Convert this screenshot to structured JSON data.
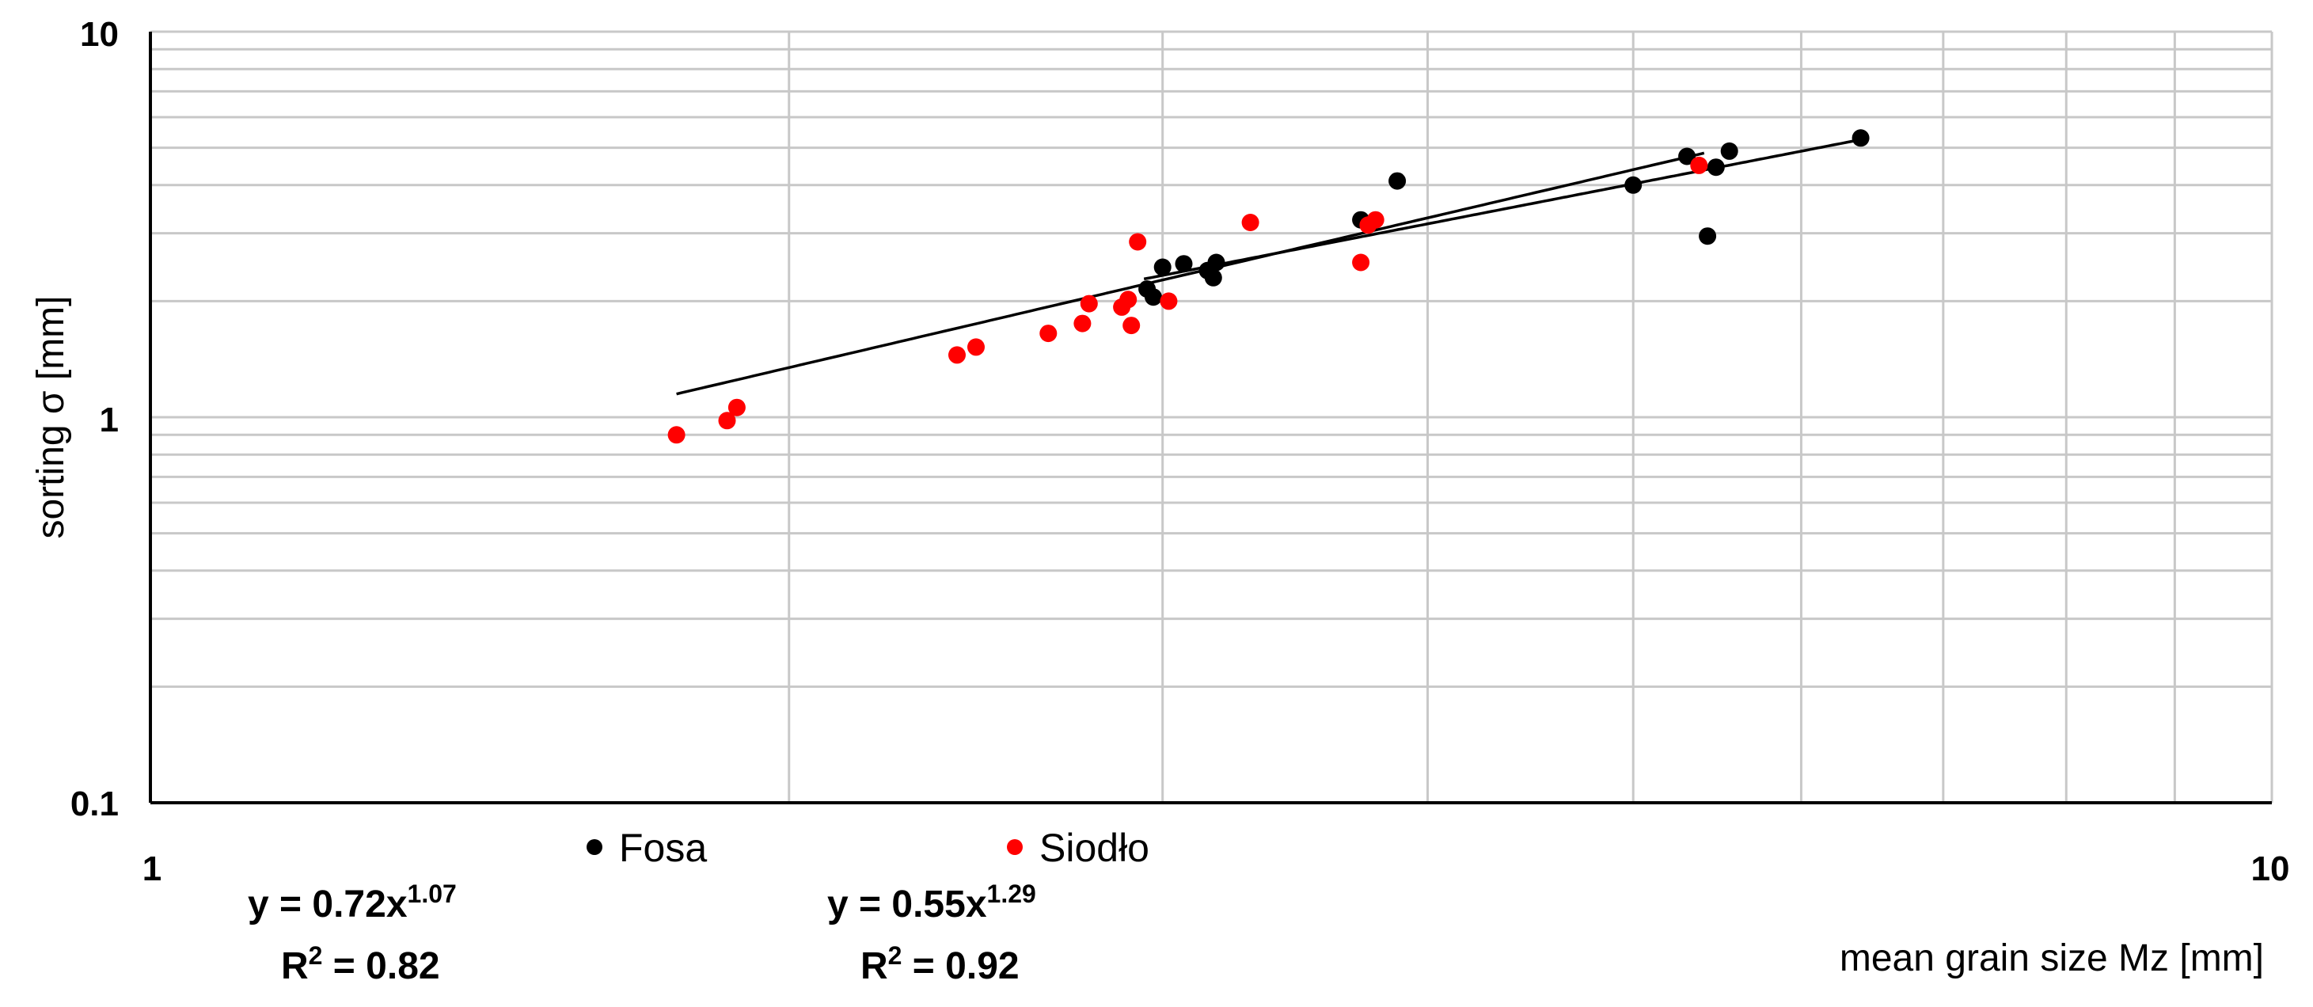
{
  "chart_data": {
    "type": "scatter",
    "xscale": "log",
    "yscale": "log",
    "xlim": [
      1,
      10
    ],
    "ylim": [
      0.1,
      10
    ],
    "grid": true,
    "xlabel": "mean grain size Mz [mm]",
    "ylabel": "sorting σ [mm]",
    "x_ticks": [
      "1",
      "10"
    ],
    "y_ticks": [
      "0.1",
      "1",
      "10"
    ],
    "legend": {
      "placement": "bottom",
      "entries": [
        "Fosa",
        "Siodło"
      ]
    },
    "series": [
      {
        "name": "Fosa",
        "color": "#000000",
        "points": [
          [
            2.95,
            2.15
          ],
          [
            2.97,
            2.05
          ],
          [
            3.0,
            2.45
          ],
          [
            3.07,
            2.5
          ],
          [
            3.15,
            2.4
          ],
          [
            3.17,
            2.3
          ],
          [
            3.18,
            2.52
          ],
          [
            3.72,
            3.25
          ],
          [
            3.87,
            4.1
          ],
          [
            5.0,
            4.0
          ],
          [
            5.3,
            4.75
          ],
          [
            5.42,
            2.95
          ],
          [
            5.47,
            4.45
          ],
          [
            5.55,
            4.9
          ],
          [
            6.4,
            5.3
          ]
        ],
        "trendline": {
          "type": "power",
          "a": 0.72,
          "b": 1.07,
          "x_range": [
            2.94,
            6.4
          ]
        }
      },
      {
        "name": "Siodło",
        "color": "#ff0000",
        "points": [
          [
            1.77,
            0.9
          ],
          [
            1.87,
            0.98
          ],
          [
            1.89,
            1.06
          ],
          [
            2.4,
            1.45
          ],
          [
            2.45,
            1.52
          ],
          [
            2.65,
            1.65
          ],
          [
            2.75,
            1.75
          ],
          [
            2.77,
            1.97
          ],
          [
            2.87,
            1.93
          ],
          [
            2.89,
            2.02
          ],
          [
            2.9,
            1.73
          ],
          [
            2.92,
            2.85
          ],
          [
            3.02,
            2.0
          ],
          [
            3.3,
            3.2
          ],
          [
            3.72,
            2.52
          ],
          [
            3.75,
            3.15
          ],
          [
            3.78,
            3.25
          ],
          [
            5.37,
            4.5
          ]
        ],
        "trendline": {
          "type": "power",
          "a": 0.55,
          "b": 1.29,
          "x_range": [
            1.77,
            5.4
          ]
        }
      }
    ],
    "annotations": [
      {
        "equation_prefix": "y = 0.72x",
        "exponent": "1.07",
        "r2_prefix": "R",
        "r2_sup": "2",
        "r2_value": " = 0.82"
      },
      {
        "equation_prefix": "y = 0.55x",
        "exponent": "1.29",
        "r2_prefix": "R",
        "r2_sup": "2",
        "r2_value": " = 0.92"
      }
    ]
  }
}
